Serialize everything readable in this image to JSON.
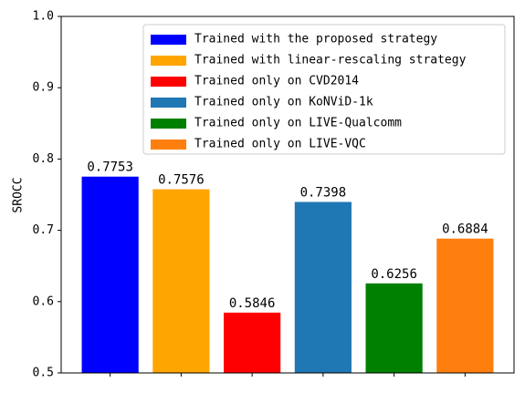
{
  "chart_data": {
    "type": "bar",
    "ylabel": "SROCC",
    "categories": [
      null,
      null,
      null,
      null,
      null,
      null
    ],
    "series": [
      {
        "name": "Trained with the proposed strategy",
        "color": "#0000ff",
        "values": [
          0.7753,
          null,
          null,
          null,
          null,
          null
        ]
      },
      {
        "name": "Trained with linear-rescaling strategy",
        "color": "#ffa500",
        "values": [
          null,
          0.7576,
          null,
          null,
          null,
          null
        ]
      },
      {
        "name": "Trained only on CVD2014",
        "color": "#ff0000",
        "values": [
          null,
          null,
          0.5846,
          null,
          null,
          null
        ]
      },
      {
        "name": "Trained only on KoNViD-1k",
        "color": "#1f77b4",
        "values": [
          null,
          null,
          null,
          0.7398,
          null,
          null
        ]
      },
      {
        "name": "Trained only on LIVE-Qualcomm",
        "color": "#008000",
        "values": [
          null,
          null,
          null,
          null,
          0.6256,
          null
        ]
      },
      {
        "name": "Trained only on LIVE-VQC",
        "color": "#ff7f0e",
        "values": [
          null,
          null,
          null,
          null,
          null,
          0.6884
        ]
      }
    ],
    "ylim": [
      0.5,
      1.0
    ],
    "yticks": [
      0.5,
      0.6,
      0.7,
      0.8,
      0.9,
      {
        "value": 1.0,
        "label": "1.0"
      }
    ],
    "legend": "upper right"
  }
}
